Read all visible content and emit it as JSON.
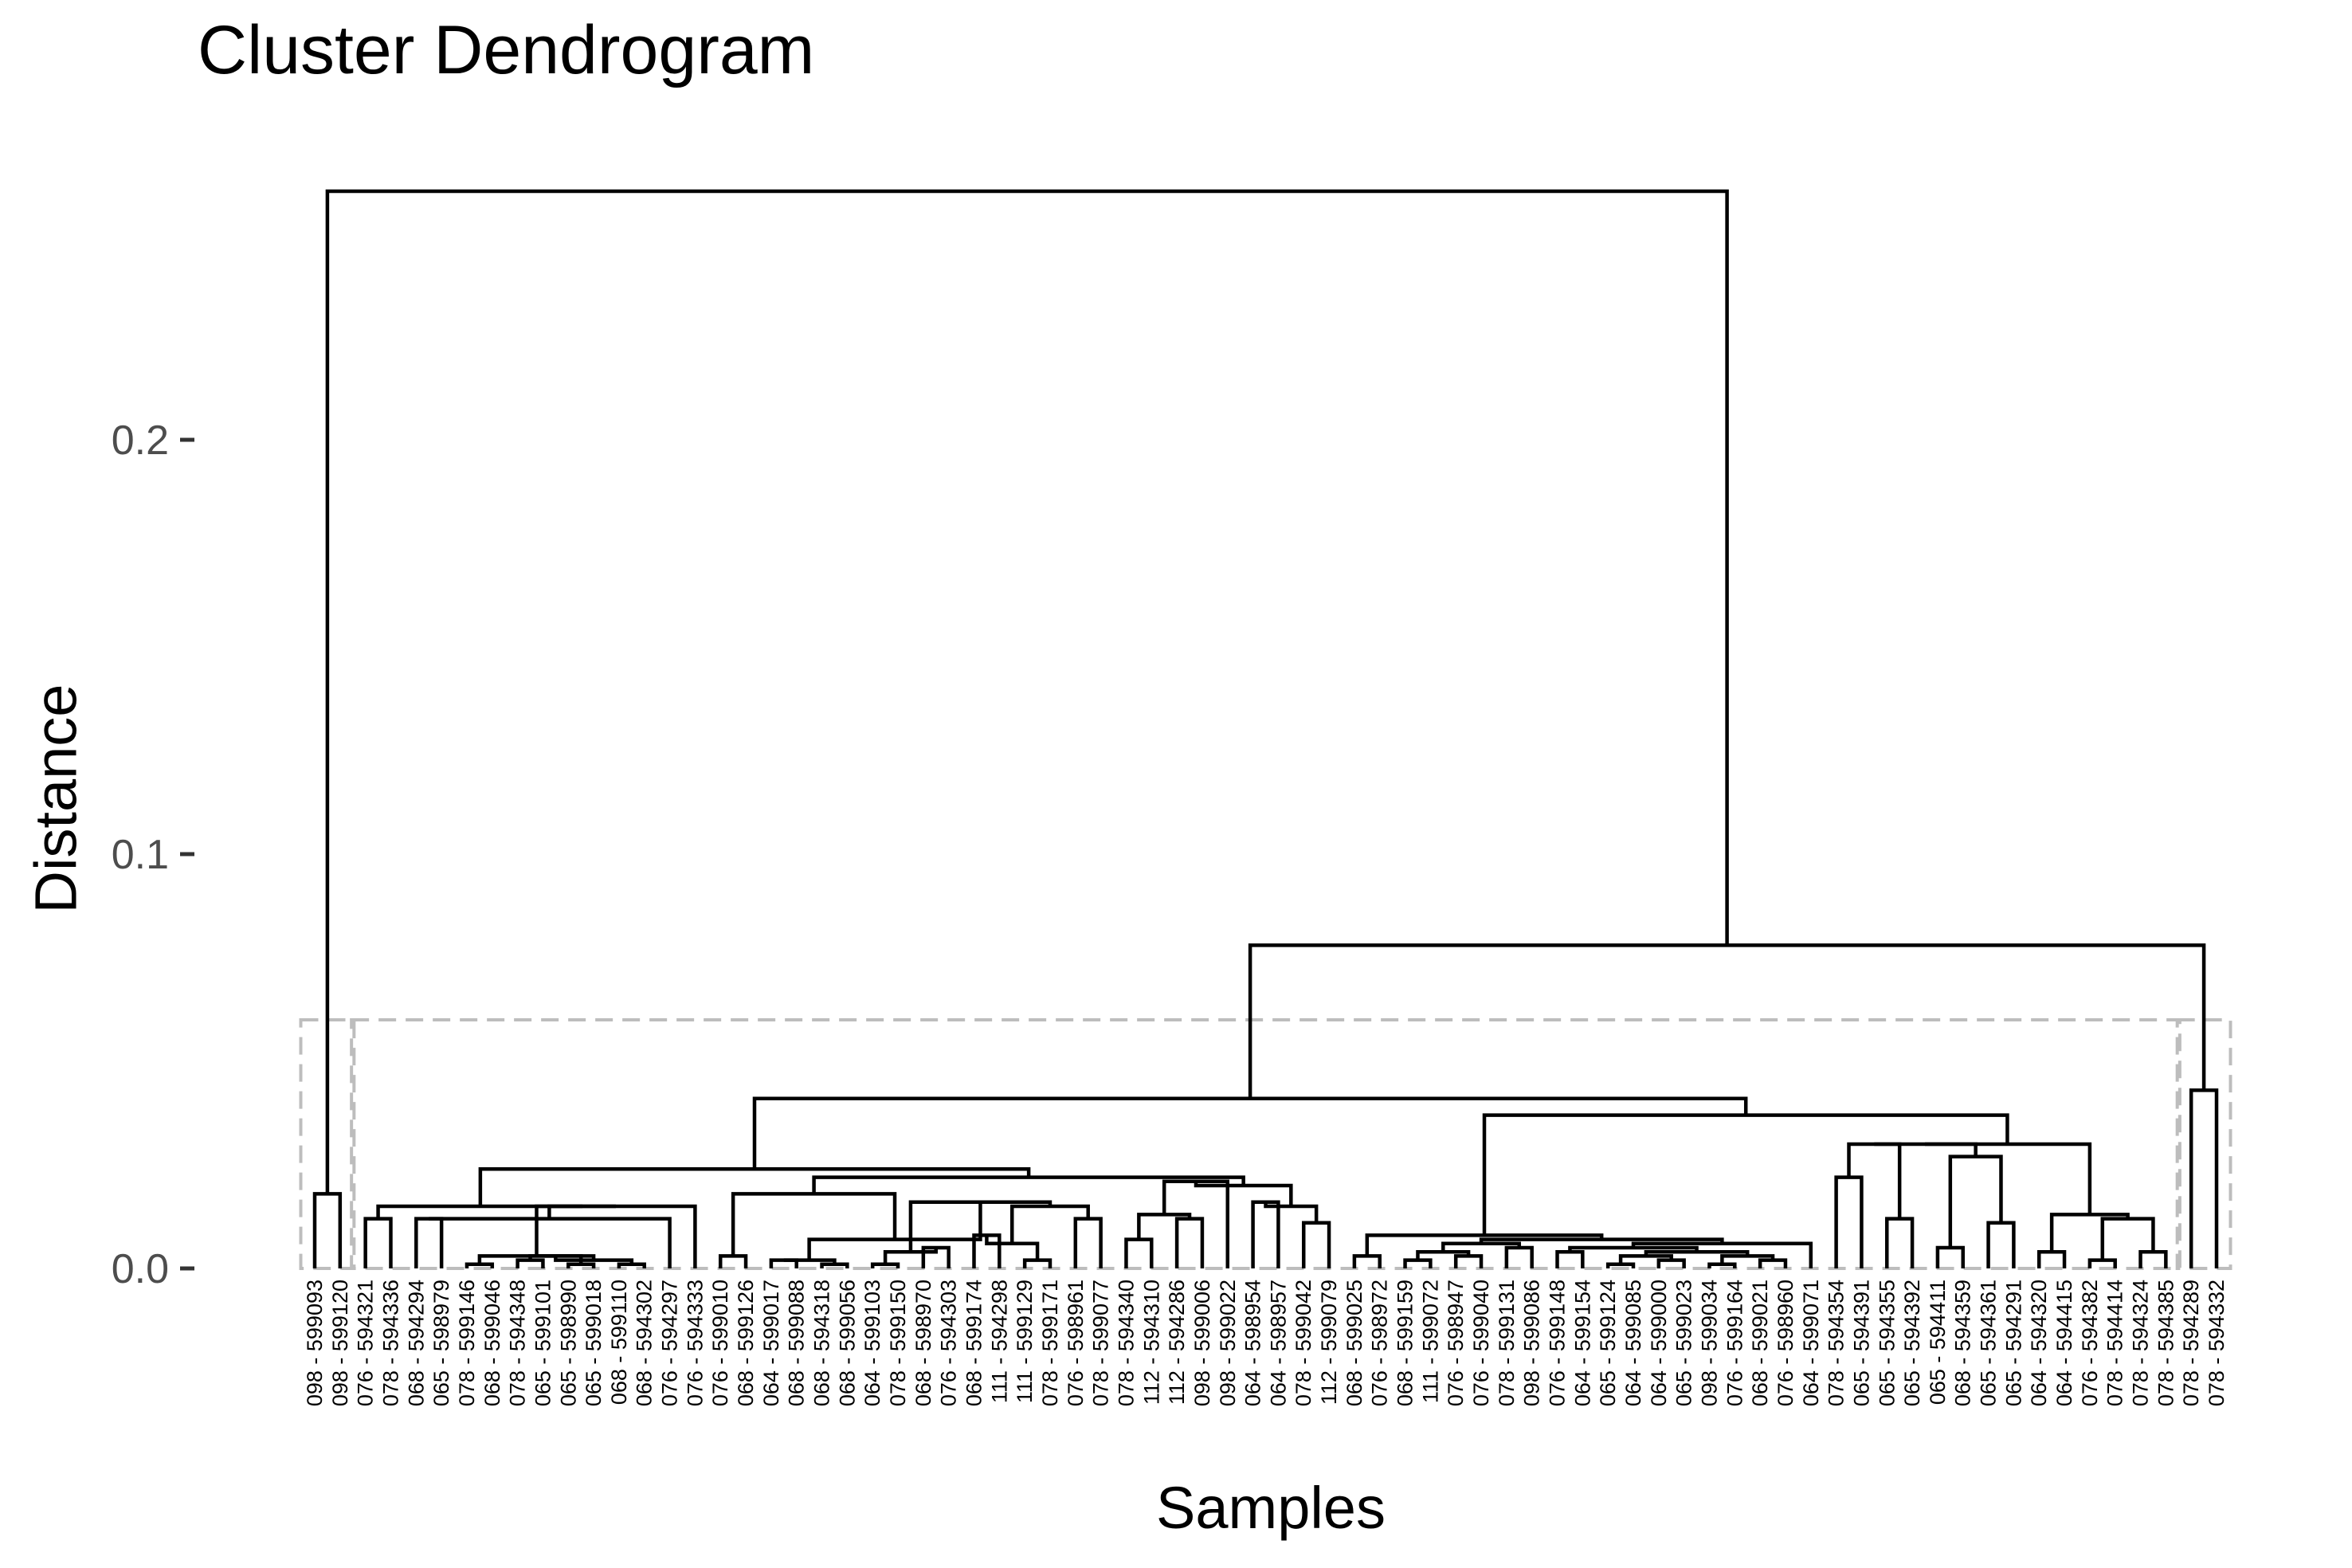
{
  "chart_data": {
    "type": "dendrogram",
    "title": "Cluster Dendrogram",
    "xlabel": "Samples",
    "ylabel": "Distance",
    "ylim": [
      0,
      0.26
    ],
    "y_ticks": [
      {
        "value": 0.0,
        "label": "0.0"
      },
      {
        "value": 0.1,
        "label": "0.1"
      },
      {
        "value": 0.2,
        "label": "0.2"
      }
    ],
    "grid": false,
    "cut_height": 0.06,
    "cluster_boxes": [
      {
        "first_leaf": 0,
        "last_leaf": 1
      },
      {
        "first_leaf": 2,
        "last_leaf": 73
      },
      {
        "first_leaf": 74,
        "last_leaf": 75
      }
    ],
    "leaves": [
      "098 - 599093",
      "098 - 599120",
      "076 - 594321",
      "078 - 594336",
      "068 - 594294",
      "065 - 598979",
      "078 - 599146",
      "068 - 599046",
      "078 - 594348",
      "065 - 599101",
      "065 - 598990",
      "065 - 599018",
      "068 - 599110",
      "068 - 594302",
      "076 - 594297",
      "076 - 594333",
      "076 - 599010",
      "068 - 599126",
      "064 - 599017",
      "068 - 599088",
      "068 - 594318",
      "068 - 599056",
      "064 - 599103",
      "078 - 599150",
      "068 - 598970",
      "076 - 594303",
      "068 - 599174",
      "111 - 594298",
      "111 - 599129",
      "078 - 599171",
      "076 - 598961",
      "078 - 599077",
      "078 - 594340",
      "112 - 594310",
      "112 - 594286",
      "098 - 599006",
      "098 - 599022",
      "064 - 598954",
      "064 - 598957",
      "078 - 599042",
      "112 - 599079",
      "068 - 599025",
      "076 - 598972",
      "068 - 599159",
      "111 - 599072",
      "076 - 598947",
      "076 - 599040",
      "078 - 599131",
      "098 - 599086",
      "076 - 599148",
      "064 - 599154",
      "065 - 599124",
      "064 - 599085",
      "064 - 599000",
      "065 - 599023",
      "098 - 599034",
      "076 - 599164",
      "068 - 599021",
      "076 - 598960",
      "064 - 599071",
      "078 - 594354",
      "065 - 594391",
      "065 - 594355",
      "065 - 594392",
      "065 - 594411",
      "068 - 594359",
      "065 - 594361",
      "065 - 594291",
      "064 - 594320",
      "064 - 594415",
      "076 - 594382",
      "078 - 594414",
      "078 - 594324",
      "078 - 594385",
      "078 - 594289",
      "078 - 594332"
    ],
    "merges": [
      {
        "left": "L0",
        "right": "L1",
        "height": 0.018
      },
      {
        "left": "L2",
        "right": "L3",
        "height": 0.012
      },
      {
        "left": "L4",
        "right": "L5",
        "height": 0.012
      },
      {
        "left": "L6",
        "right": "L7",
        "height": 0.001
      },
      {
        "left": "L8",
        "right": "L9",
        "height": 0.002
      },
      {
        "left": "L10",
        "right": "L11",
        "height": 0.001
      },
      {
        "left": "L12",
        "right": "L13",
        "height": 0.001
      },
      {
        "left": "M4",
        "right": "M5",
        "height": 0.003
      },
      {
        "left": "M6",
        "right": "M7",
        "height": 0.002
      },
      {
        "left": "M3",
        "right": "M8",
        "height": 0.003
      },
      {
        "left": "M2",
        "right": "L14",
        "height": 0.012
      },
      {
        "left": "M9",
        "right": "L15",
        "height": 0.015
      },
      {
        "left": "M10",
        "right": "M11",
        "height": 0.015
      },
      {
        "left": "M1",
        "right": "M12",
        "height": 0.015
      },
      {
        "left": "L16",
        "right": "L17",
        "height": 0.003
      },
      {
        "left": "L18",
        "right": "L19",
        "height": 0.002
      },
      {
        "left": "L20",
        "right": "L21",
        "height": 0.001
      },
      {
        "left": "M15",
        "right": "M16",
        "height": 0.002
      },
      {
        "left": "L22",
        "right": "L23",
        "height": 0.001
      },
      {
        "left": "L24",
        "right": "L25",
        "height": 0.005
      },
      {
        "left": "M18",
        "right": "M19",
        "height": 0.004
      },
      {
        "left": "L26",
        "right": "L27",
        "height": 0.008
      },
      {
        "left": "L28",
        "right": "L29",
        "height": 0.002
      },
      {
        "left": "M21",
        "right": "M22",
        "height": 0.006
      },
      {
        "left": "L30",
        "right": "L31",
        "height": 0.012
      },
      {
        "left": "M23",
        "right": "M24",
        "height": 0.015
      },
      {
        "left": "M20",
        "right": "M25",
        "height": 0.016
      },
      {
        "left": "M17",
        "right": "M26",
        "height": 0.007
      },
      {
        "left": "M14",
        "right": "M27",
        "height": 0.018
      },
      {
        "left": "L32",
        "right": "L33",
        "height": 0.007
      },
      {
        "left": "L34",
        "right": "L35",
        "height": 0.012
      },
      {
        "left": "M29",
        "right": "M30",
        "height": 0.013
      },
      {
        "left": "L36",
        "right": "M31",
        "height": 0.021
      },
      {
        "left": "L37",
        "right": "L38",
        "height": 0.016
      },
      {
        "left": "L39",
        "right": "L40",
        "height": 0.011
      },
      {
        "left": "M34",
        "right": "M33",
        "height": 0.015
      },
      {
        "left": "M32",
        "right": "M35",
        "height": 0.02
      },
      {
        "left": "M28",
        "right": "M36",
        "height": 0.022
      },
      {
        "left": "M13",
        "right": "M37",
        "height": 0.024
      },
      {
        "left": "L41",
        "right": "L42",
        "height": 0.003
      },
      {
        "left": "L43",
        "right": "L44",
        "height": 0.002
      },
      {
        "left": "L45",
        "right": "L46",
        "height": 0.003
      },
      {
        "left": "M40",
        "right": "M41",
        "height": 0.004
      },
      {
        "left": "L47",
        "right": "L48",
        "height": 0.005
      },
      {
        "left": "M42",
        "right": "M43",
        "height": 0.006
      },
      {
        "left": "L49",
        "right": "L50",
        "height": 0.004
      },
      {
        "left": "L51",
        "right": "L52",
        "height": 0.001
      },
      {
        "left": "L53",
        "right": "L54",
        "height": 0.002
      },
      {
        "left": "M46",
        "right": "M47",
        "height": 0.003
      },
      {
        "left": "L55",
        "right": "L56",
        "height": 0.001
      },
      {
        "left": "L57",
        "right": "L58",
        "height": 0.002
      },
      {
        "left": "M49",
        "right": "M50",
        "height": 0.003
      },
      {
        "left": "M48",
        "right": "M51",
        "height": 0.004
      },
      {
        "left": "M45",
        "right": "M52",
        "height": 0.005
      },
      {
        "left": "L59",
        "right": "M53",
        "height": 0.006
      },
      {
        "left": "M44",
        "right": "M54",
        "height": 0.007
      },
      {
        "left": "M39",
        "right": "M55",
        "height": 0.008
      },
      {
        "left": "L60",
        "right": "L61",
        "height": 0.022
      },
      {
        "left": "L62",
        "right": "L63",
        "height": 0.012
      },
      {
        "left": "M57",
        "right": "M58",
        "height": 0.03
      },
      {
        "left": "L64",
        "right": "L65",
        "height": 0.005
      },
      {
        "left": "L66",
        "right": "L67",
        "height": 0.011
      },
      {
        "left": "M60",
        "right": "M61",
        "height": 0.027
      },
      {
        "left": "M59",
        "right": "M62",
        "height": 0.03
      },
      {
        "left": "L68",
        "right": "L69",
        "height": 0.004
      },
      {
        "left": "L70",
        "right": "L71",
        "height": 0.002
      },
      {
        "left": "L72",
        "right": "L73",
        "height": 0.004
      },
      {
        "left": "M65",
        "right": "M66",
        "height": 0.012
      },
      {
        "left": "M64",
        "right": "M67",
        "height": 0.013
      },
      {
        "left": "M63",
        "right": "M68",
        "height": 0.03
      },
      {
        "left": "M56",
        "right": "M69",
        "height": 0.037
      },
      {
        "left": "M38",
        "right": "M70",
        "height": 0.041
      },
      {
        "left": "L74",
        "right": "L75",
        "height": 0.043
      },
      {
        "left": "M71",
        "right": "M72",
        "height": 0.078
      },
      {
        "left": "M0",
        "right": "M73",
        "height": 0.26
      }
    ]
  }
}
